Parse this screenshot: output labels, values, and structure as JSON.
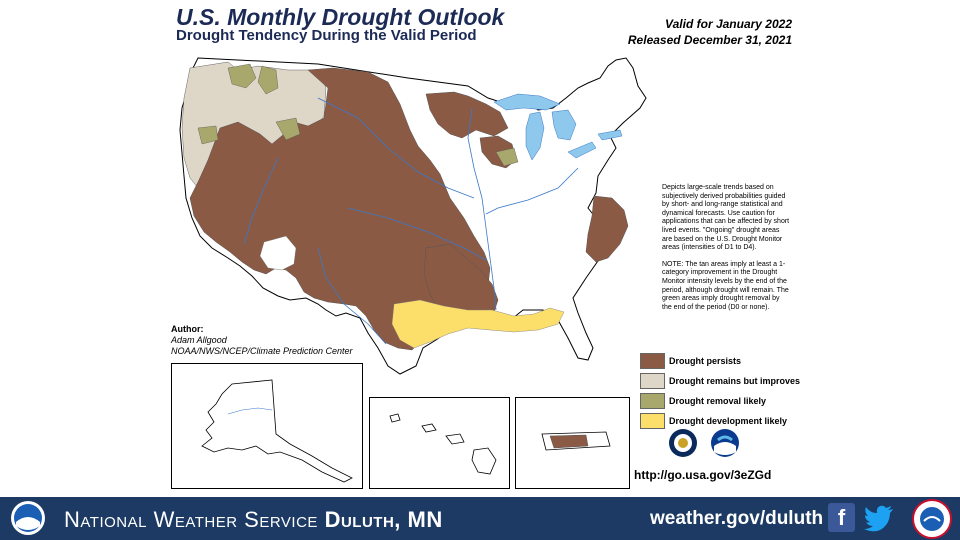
{
  "header": {
    "title": "U.S. Monthly Drought Outlook",
    "subtitle": "Drought Tendency During the Valid Period",
    "valid_line": "Valid for January 2022",
    "released_line": "Released December 31, 2021"
  },
  "author": {
    "label": "Author:",
    "name": "Adam Allgood",
    "org": "NOAA/NWS/NCEP/Climate Prediction Center"
  },
  "notes": {
    "p1": "Depicts large-scale trends based on subjectively derived probabilities guided by short- and long-range statistical and dynamical forecasts. Use caution for applications that can be affected by short lived events. \"Ongoing\" drought areas are based on the U.S. Drought Monitor areas (intensities of D1 to D4).",
    "p2": "NOTE: The tan areas imply at least a 1-category improvement in the Drought Monitor intensity levels by the end of the period, although drought will remain. The green areas imply drought removal by the end of the period (D0 or none)."
  },
  "legend": [
    {
      "label": "Drought persists",
      "color": "#8b5a45"
    },
    {
      "label": "Drought remains but improves",
      "color": "#ded6c6"
    },
    {
      "label": "Drought removal likely",
      "color": "#a9a86c"
    },
    {
      "label": "Drought development likely",
      "color": "#fbdf6a"
    }
  ],
  "map_colors": {
    "persists": "#8b5a45",
    "improves": "#ded6c6",
    "removal": "#a9a86c",
    "development": "#fbdf6a",
    "lakes": "#8ec8ec",
    "rivers": "#3a78c8"
  },
  "url": "http://go.usa.gov/3eZGd",
  "footer": {
    "org_prefix": "National Weather Service",
    "office": "Duluth, MN",
    "site": "weather.gov/duluth",
    "accent": "#1c3a63"
  }
}
